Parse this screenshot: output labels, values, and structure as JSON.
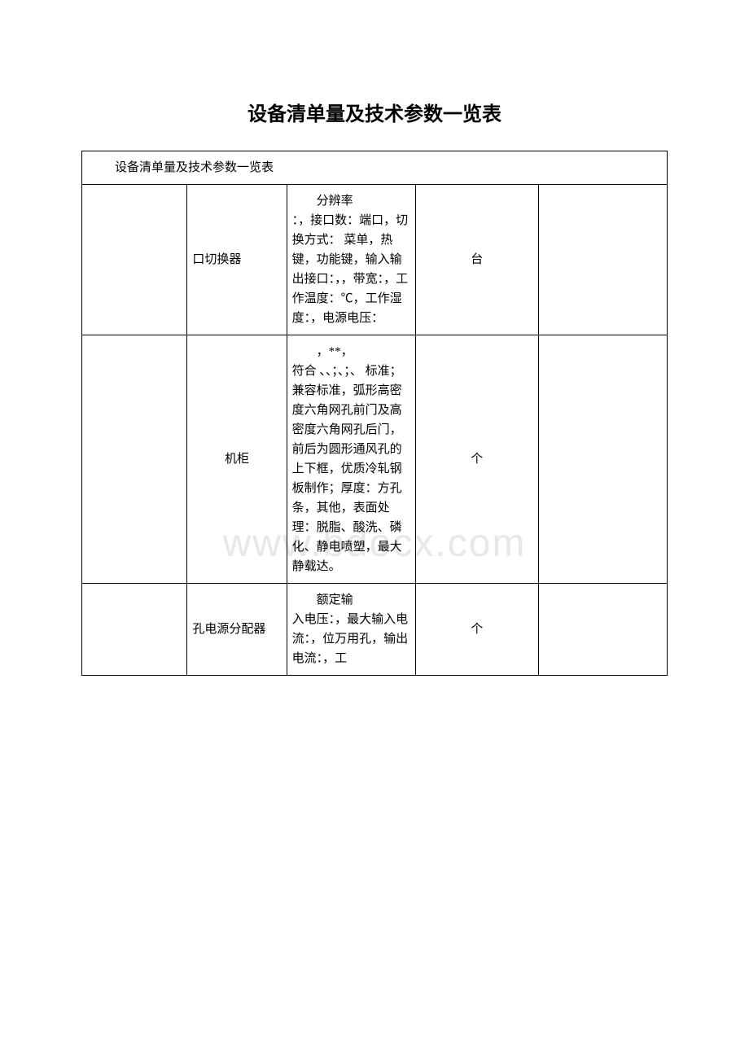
{
  "page": {
    "title": "设备清单量及技术参数一览表",
    "watermark": "www.bdocx.com",
    "background_color": "#ffffff",
    "text_color": "#000000",
    "border_color": "#000000",
    "watermark_color": "#e8e8e8",
    "title_fontsize": 24,
    "body_fontsize": 15
  },
  "table": {
    "caption": "设备清单量及技术参数一览表",
    "column_widths": [
      "18%",
      "17%",
      "22%",
      "21%",
      "22%"
    ],
    "rows": [
      {
        "col1": "",
        "col2_prefix": "",
        "col2": "口切换器",
        "col3_first": "分辨率",
        "col3_rest": "：，接口数：端口，切换方式： 菜单，热键，功能键，输入输出接口：，，带宽：，工作温度：℃，工作湿度：，电源电压：",
        "col4": "台",
        "col5": ""
      },
      {
        "col1": "",
        "col2_prefix": "",
        "col2": "机柜",
        "col3_first": "，**，",
        "col3_rest": "符合 、、；、；、 标准； 兼容标准，弧形高密度六角网孔前门及高密度六角网孔后门，前后为圆形通风孔的上下框，优质冷轧钢板制作；厚度：方孔条，其他，表面处理：脱脂、酸洗、磷化、静电喷塑，最大静载达。",
        "col4": "个",
        "col5": ""
      },
      {
        "col1": "",
        "col2_prefix": "",
        "col2": "孔电源分配器",
        "col3_first": "额定输",
        "col3_rest": "入电压：，最大输入电流：，位万用孔，输出电流：，工",
        "col4": "个",
        "col5": ""
      }
    ]
  }
}
